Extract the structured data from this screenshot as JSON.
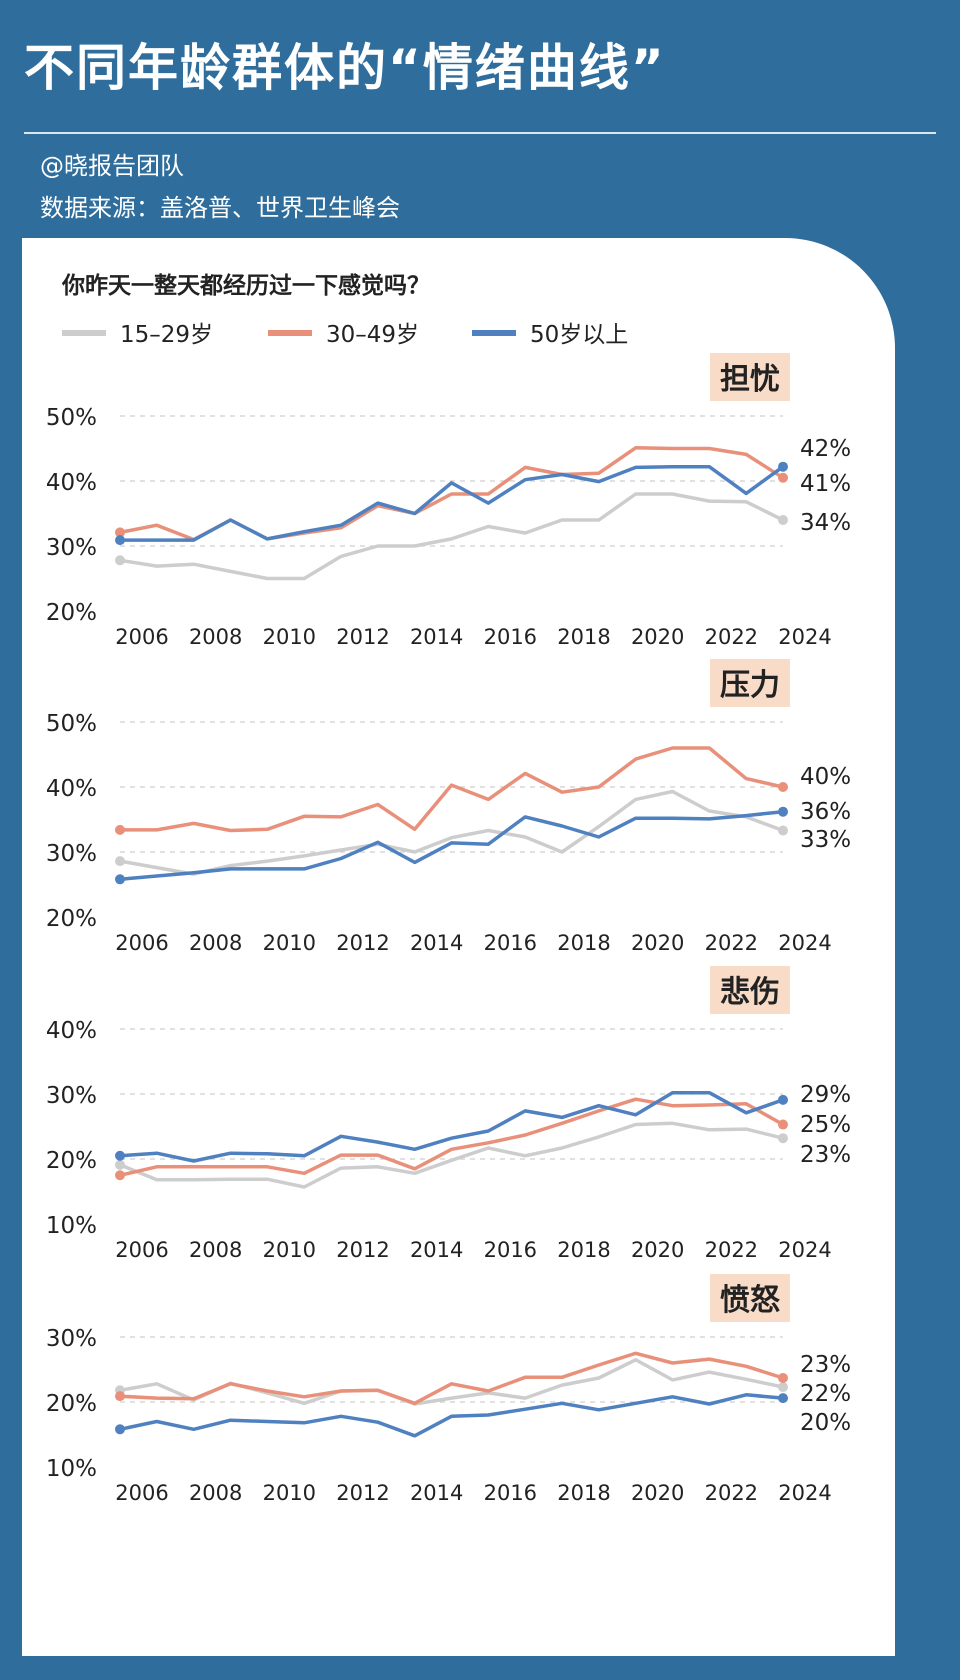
{
  "title": "不同年龄群体的“情绪曲线”",
  "author": "@晓报告团队",
  "source": "数据来源：盖洛普、世界卫生峰会",
  "question": "你昨天一整天都经历过一下感觉吗？",
  "legend": [
    {
      "name": "15–29岁",
      "color": "#cdcdcd"
    },
    {
      "name": "30–49岁",
      "color": "#e8907a"
    },
    {
      "name": "50岁以上",
      "color": "#4f80c0"
    }
  ],
  "chart_data": [
    {
      "type": "line",
      "title": "担忧",
      "x": [
        2006,
        2007,
        2008,
        2009,
        2010,
        2011,
        2012,
        2013,
        2014,
        2015,
        2016,
        2017,
        2018,
        2019,
        2020,
        2021,
        2022,
        2023,
        2024
      ],
      "x_tick_labels": [
        "2006",
        "2008",
        "2010",
        "2012",
        "2014",
        "2016",
        "2018",
        "2020",
        "2022",
        "2024"
      ],
      "y_ticks": [
        "50%",
        "40%",
        "30%",
        "20%"
      ],
      "ylim": [
        20,
        50
      ],
      "grid": true,
      "series": [
        {
          "name": "15–29岁",
          "values": [
            27.8,
            26.9,
            27.2,
            26.1,
            25,
            25,
            28.4,
            30,
            30,
            31.1,
            33,
            32,
            34,
            34,
            38,
            38,
            36.9,
            36.8,
            34
          ],
          "end_label": "34%"
        },
        {
          "name": "30–49岁",
          "values": [
            32.1,
            33.2,
            31,
            34,
            31.1,
            32,
            32.8,
            36.2,
            35,
            38,
            38,
            42.1,
            41,
            41.2,
            45.1,
            45,
            45,
            44.1,
            40.5
          ],
          "end_label": "41%"
        },
        {
          "name": "50岁以上",
          "values": [
            30.9,
            30.9,
            30.9,
            34,
            31.1,
            32.2,
            33.2,
            36.6,
            35,
            39.7,
            36.6,
            40.2,
            41,
            39.9,
            42.1,
            42.2,
            42.2,
            38.1,
            42.2
          ],
          "end_label": "42%"
        }
      ]
    },
    {
      "type": "line",
      "title": "压力",
      "x": [
        2006,
        2007,
        2008,
        2009,
        2010,
        2011,
        2012,
        2013,
        2014,
        2015,
        2016,
        2017,
        2018,
        2019,
        2020,
        2021,
        2022,
        2023,
        2024
      ],
      "x_tick_labels": [
        "2006",
        "2008",
        "2010",
        "2012",
        "2014",
        "2016",
        "2018",
        "2020",
        "2022",
        "2024"
      ],
      "y_ticks": [
        "50%",
        "40%",
        "30%",
        "20%"
      ],
      "ylim": [
        20,
        50
      ],
      "grid": true,
      "series": [
        {
          "name": "15–29岁",
          "values": [
            28.6,
            27.6,
            26.6,
            27.9,
            28.6,
            29.4,
            30.3,
            31.2,
            30,
            32.2,
            33.3,
            32.3,
            30,
            33.9,
            38.1,
            39.3,
            36.3,
            35.4,
            33.3
          ],
          "end_label": "33%"
        },
        {
          "name": "30–49岁",
          "values": [
            33.4,
            33.4,
            34.4,
            33.3,
            33.5,
            35.5,
            35.4,
            37.3,
            33.5,
            40.3,
            38.1,
            42.1,
            39.2,
            40,
            44.3,
            46,
            46,
            41.3,
            40
          ],
          "end_label": "40%"
        },
        {
          "name": "50岁以上",
          "values": [
            25.8,
            26.3,
            26.8,
            27.4,
            27.4,
            27.4,
            29,
            31.5,
            28.4,
            31.4,
            31.2,
            35.4,
            34,
            32.3,
            35.2,
            35.2,
            35.1,
            35.6,
            36.2
          ],
          "end_label": "36%"
        }
      ]
    },
    {
      "type": "line",
      "title": "悲伤",
      "x": [
        2006,
        2007,
        2008,
        2009,
        2010,
        2011,
        2012,
        2013,
        2014,
        2015,
        2016,
        2017,
        2018,
        2019,
        2020,
        2021,
        2022,
        2023,
        2024
      ],
      "x_tick_labels": [
        "2006",
        "2008",
        "2010",
        "2012",
        "2014",
        "2016",
        "2018",
        "2020",
        "2022",
        "2024"
      ],
      "y_ticks": [
        "40%",
        "30%",
        "20%",
        "10%"
      ],
      "ylim": [
        10,
        40
      ],
      "grid": true,
      "series": [
        {
          "name": "15–29岁",
          "values": [
            19.1,
            16.8,
            16.8,
            16.9,
            16.9,
            15.7,
            18.6,
            18.8,
            17.8,
            19.8,
            21.7,
            20.5,
            21.7,
            23.4,
            25.3,
            25.5,
            24.5,
            24.6,
            23.2
          ],
          "end_label": "23%"
        },
        {
          "name": "30–49岁",
          "values": [
            17.5,
            18.8,
            18.8,
            18.8,
            18.8,
            17.8,
            20.6,
            20.6,
            18.5,
            21.5,
            22.5,
            23.7,
            25.5,
            27.4,
            29.2,
            28.2,
            28.3,
            28.5,
            25.3
          ],
          "end_label": "25%"
        },
        {
          "name": "50岁以上",
          "values": [
            20.5,
            20.9,
            19.7,
            20.9,
            20.8,
            20.5,
            23.5,
            22.6,
            21.5,
            23.2,
            24.3,
            27.4,
            26.4,
            28.2,
            26.8,
            30.2,
            30.2,
            27.1,
            29.1
          ],
          "end_label": "29%"
        }
      ]
    },
    {
      "type": "line",
      "title": "愤怒",
      "x": [
        2006,
        2007,
        2008,
        2009,
        2010,
        2011,
        2012,
        2013,
        2014,
        2015,
        2016,
        2017,
        2018,
        2019,
        2020,
        2021,
        2022,
        2023,
        2024
      ],
      "x_tick_labels": [
        "2006",
        "2008",
        "2010",
        "2012",
        "2014",
        "2016",
        "2018",
        "2020",
        "2022",
        "2024"
      ],
      "y_ticks": [
        "30%",
        "20%",
        "10%"
      ],
      "ylim": [
        10,
        30
      ],
      "grid": true,
      "series": [
        {
          "name": "15–29岁",
          "values": [
            21.8,
            22.8,
            20.3,
            22.9,
            21.4,
            19.8,
            21.7,
            21.8,
            19.7,
            20.6,
            21.4,
            20.6,
            22.6,
            23.7,
            26.5,
            23.4,
            24.6,
            23.5,
            22.3
          ],
          "end_label": "22%"
        },
        {
          "name": "30–49岁",
          "values": [
            20.9,
            20.6,
            20.5,
            22.8,
            21.7,
            20.8,
            21.7,
            21.8,
            19.8,
            22.8,
            21.7,
            23.8,
            23.8,
            25.7,
            27.5,
            26,
            26.6,
            25.5,
            23.7
          ],
          "end_label": "23%"
        },
        {
          "name": "50岁以上",
          "values": [
            15.8,
            17,
            15.8,
            17.2,
            17,
            16.8,
            17.8,
            16.9,
            14.8,
            17.8,
            18,
            18.9,
            19.8,
            18.8,
            19.8,
            20.8,
            19.7,
            21.1,
            20.6
          ],
          "end_label": "20%"
        }
      ]
    }
  ]
}
